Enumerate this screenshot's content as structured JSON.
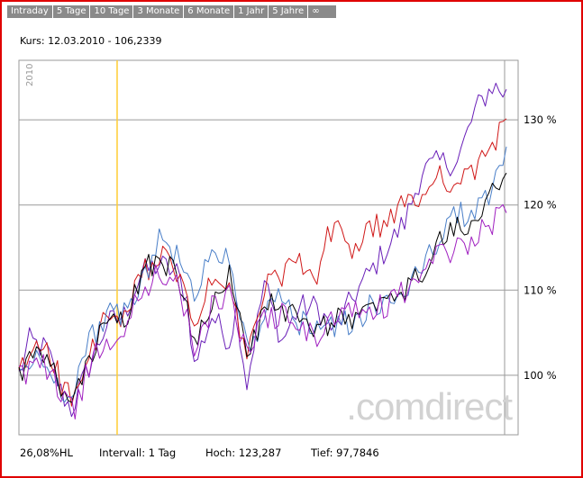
{
  "tabs": [
    "Intraday",
    "5 Tage",
    "10 Tage",
    "3 Monate",
    "6 Monate",
    "1 Jahr",
    "5 Jahre",
    "∞"
  ],
  "kurs": "Kurs: 12.03.2010 - 106,2339",
  "watermark": ".comdirect",
  "footer": {
    "hl": "26,08%HL",
    "intervall": "Intervall: 1 Tag",
    "hoch": "Hoch:  123,287",
    "tief": "Tief: 97,7846"
  },
  "colors": {
    "frame": "#e00000",
    "grid": "#9a9a9a",
    "marker": "#ffcc33"
  },
  "chart_data": {
    "type": "line",
    "year_label": "2010",
    "ytick_labels": [
      "100 %",
      "110 %",
      "120 %",
      "130 %"
    ],
    "yticks": [
      100,
      110,
      120,
      130
    ],
    "ylim": [
      93,
      137
    ],
    "n_points": 140,
    "marker_index": 28,
    "series": [
      {
        "color": "#6a1fb8",
        "anchors": [
          [
            0,
            100
          ],
          [
            3,
            104
          ],
          [
            8,
            103
          ],
          [
            12,
            98
          ],
          [
            15,
            96
          ],
          [
            20,
            101
          ],
          [
            25,
            106
          ],
          [
            30,
            107
          ],
          [
            35,
            112
          ],
          [
            40,
            113
          ],
          [
            45,
            112
          ],
          [
            48,
            109
          ],
          [
            50,
            101
          ],
          [
            55,
            107
          ],
          [
            60,
            104
          ],
          [
            62,
            108
          ],
          [
            65,
            99
          ],
          [
            70,
            111
          ],
          [
            75,
            104
          ],
          [
            80,
            108
          ],
          [
            85,
            108
          ],
          [
            90,
            105
          ],
          [
            95,
            109
          ],
          [
            100,
            112
          ],
          [
            105,
            115
          ],
          [
            110,
            118
          ],
          [
            115,
            124
          ],
          [
            120,
            125
          ],
          [
            125,
            125
          ],
          [
            130,
            131
          ],
          [
            135,
            134
          ],
          [
            139,
            133
          ]
        ]
      },
      {
        "color": "#d01818",
        "anchors": [
          [
            0,
            100
          ],
          [
            4,
            103
          ],
          [
            8,
            104
          ],
          [
            12,
            99
          ],
          [
            16,
            97
          ],
          [
            20,
            102
          ],
          [
            25,
            107
          ],
          [
            30,
            106
          ],
          [
            35,
            112
          ],
          [
            40,
            114
          ],
          [
            45,
            112
          ],
          [
            50,
            106
          ],
          [
            55,
            111
          ],
          [
            60,
            110
          ],
          [
            65,
            102
          ],
          [
            70,
            110
          ],
          [
            75,
            112
          ],
          [
            80,
            113
          ],
          [
            85,
            111
          ],
          [
            88,
            116
          ],
          [
            92,
            118
          ],
          [
            95,
            114
          ],
          [
            100,
            117
          ],
          [
            105,
            118
          ],
          [
            110,
            120
          ],
          [
            115,
            121
          ],
          [
            120,
            124
          ],
          [
            125,
            122
          ],
          [
            130,
            124
          ],
          [
            135,
            127
          ],
          [
            139,
            131
          ]
        ]
      },
      {
        "color": "#4a7fc8",
        "anchors": [
          [
            0,
            100
          ],
          [
            4,
            102
          ],
          [
            8,
            101
          ],
          [
            12,
            98
          ],
          [
            16,
            99
          ],
          [
            20,
            104
          ],
          [
            25,
            107
          ],
          [
            30,
            107
          ],
          [
            35,
            111
          ],
          [
            40,
            116
          ],
          [
            45,
            114
          ],
          [
            50,
            109
          ],
          [
            55,
            115
          ],
          [
            60,
            114
          ],
          [
            65,
            103
          ],
          [
            70,
            107
          ],
          [
            75,
            109
          ],
          [
            80,
            106
          ],
          [
            85,
            106
          ],
          [
            90,
            106
          ],
          [
            95,
            106
          ],
          [
            100,
            108
          ],
          [
            105,
            108
          ],
          [
            110,
            110
          ],
          [
            115,
            113
          ],
          [
            120,
            116
          ],
          [
            125,
            119
          ],
          [
            130,
            119
          ],
          [
            135,
            122
          ],
          [
            139,
            126
          ]
        ]
      },
      {
        "color": "#000000",
        "anchors": [
          [
            0,
            100
          ],
          [
            4,
            102
          ],
          [
            8,
            102
          ],
          [
            12,
            98
          ],
          [
            16,
            97
          ],
          [
            20,
            102
          ],
          [
            25,
            106
          ],
          [
            30,
            106
          ],
          [
            35,
            112
          ],
          [
            40,
            114
          ],
          [
            45,
            112
          ],
          [
            50,
            104
          ],
          [
            55,
            109
          ],
          [
            60,
            112
          ],
          [
            65,
            102
          ],
          [
            70,
            108
          ],
          [
            75,
            108
          ],
          [
            80,
            106
          ],
          [
            85,
            105
          ],
          [
            90,
            107
          ],
          [
            95,
            106
          ],
          [
            100,
            108
          ],
          [
            105,
            108
          ],
          [
            110,
            110
          ],
          [
            115,
            112
          ],
          [
            120,
            116
          ],
          [
            125,
            117
          ],
          [
            130,
            119
          ],
          [
            135,
            121
          ],
          [
            139,
            123
          ]
        ]
      },
      {
        "color": "#a020c0",
        "anchors": [
          [
            0,
            100
          ],
          [
            4,
            101
          ],
          [
            8,
            101
          ],
          [
            12,
            98
          ],
          [
            16,
            96
          ],
          [
            20,
            101
          ],
          [
            25,
            104
          ],
          [
            30,
            105
          ],
          [
            35,
            110
          ],
          [
            40,
            112
          ],
          [
            45,
            111
          ],
          [
            50,
            103
          ],
          [
            55,
            108
          ],
          [
            60,
            110
          ],
          [
            65,
            102
          ],
          [
            70,
            107
          ],
          [
            75,
            107
          ],
          [
            80,
            106
          ],
          [
            85,
            104
          ],
          [
            90,
            107
          ],
          [
            95,
            107
          ],
          [
            100,
            108
          ],
          [
            105,
            108
          ],
          [
            110,
            110
          ],
          [
            115,
            112
          ],
          [
            120,
            114
          ],
          [
            125,
            115
          ],
          [
            130,
            116
          ],
          [
            135,
            118
          ],
          [
            139,
            120
          ]
        ]
      }
    ]
  }
}
